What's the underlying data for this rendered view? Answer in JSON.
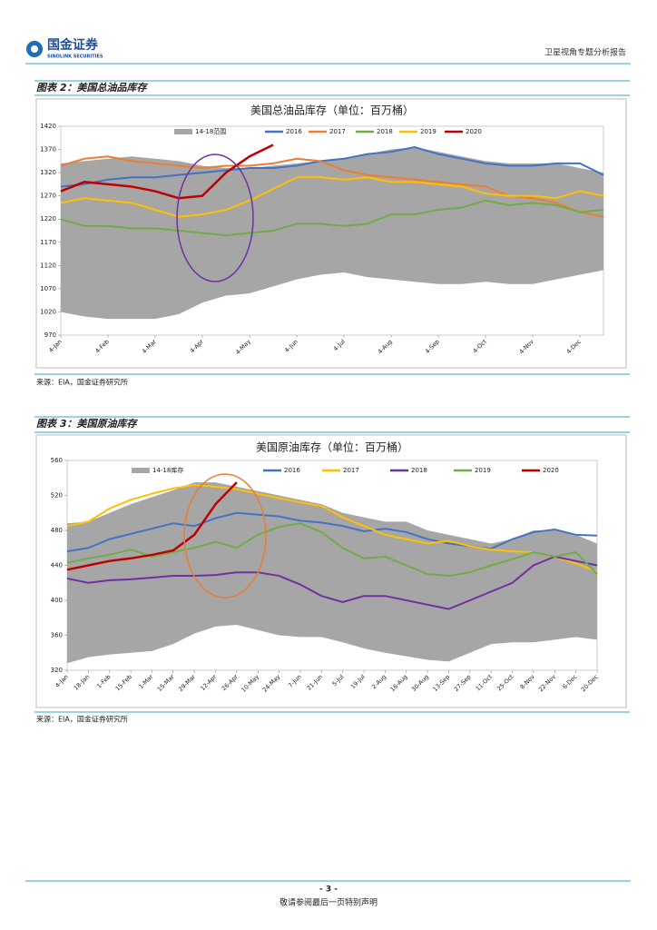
{
  "header": {
    "logo_cn": "国金证券",
    "logo_en": "SINOLINK SECURITIES",
    "report_title": "卫星视角专题分析报告"
  },
  "figures": [
    {
      "caption": "图表 2：美国总油品库存",
      "source": "来源：EIA，国金证券研究所"
    },
    {
      "caption": "图表 3：美国原油库存",
      "source": "来源：EIA，国金证券研究所"
    }
  ],
  "chart_data": [
    {
      "type": "line",
      "title": "美国总油品库存（单位：百万桶）",
      "categories": [
        "4-Jan",
        null,
        "4-Feb",
        null,
        "4-Mar",
        null,
        "4-Apr",
        null,
        "4-May",
        null,
        "4-Jun",
        null,
        "4-Jul",
        null,
        "4-Aug",
        null,
        "4-Sep",
        null,
        "4-Oct",
        null,
        "4-Nov",
        null,
        "4-Dec",
        null
      ],
      "ylim": [
        970,
        1420
      ],
      "yticks": [
        970,
        1020,
        1070,
        1120,
        1170,
        1220,
        1270,
        1320,
        1370,
        1420
      ],
      "band": {
        "name": "14-18范围",
        "color": "#a6a6a6",
        "high": [
          1340,
          1345,
          1350,
          1355,
          1350,
          1345,
          1335,
          1330,
          1330,
          1335,
          1340,
          1345,
          1350,
          1360,
          1370,
          1375,
          1365,
          1355,
          1345,
          1340,
          1340,
          1340,
          1330,
          1320
        ],
        "low": [
          1020,
          1010,
          1005,
          1005,
          1005,
          1015,
          1040,
          1055,
          1060,
          1075,
          1090,
          1100,
          1105,
          1095,
          1090,
          1085,
          1080,
          1080,
          1085,
          1080,
          1080,
          1090,
          1100,
          1110
        ]
      },
      "series": [
        {
          "name": "2016",
          "color": "#4472c4",
          "values": [
            1290,
            1295,
            1305,
            1310,
            1310,
            1315,
            1320,
            1325,
            1330,
            1330,
            1335,
            1345,
            1350,
            1360,
            1365,
            1375,
            1360,
            1350,
            1340,
            1335,
            1335,
            1340,
            1340,
            1315
          ]
        },
        {
          "name": "2017",
          "color": "#ed7d31",
          "values": [
            1335,
            1350,
            1355,
            1345,
            1340,
            1335,
            1330,
            1335,
            1335,
            1340,
            1350,
            1345,
            1325,
            1315,
            1310,
            1305,
            1300,
            1295,
            1290,
            1270,
            1265,
            1255,
            1235,
            1225
          ]
        },
        {
          "name": "2018",
          "color": "#70ad47",
          "values": [
            1220,
            1205,
            1205,
            1200,
            1200,
            1195,
            1190,
            1185,
            1190,
            1195,
            1210,
            1210,
            1205,
            1210,
            1230,
            1230,
            1240,
            1245,
            1260,
            1250,
            1255,
            1250,
            1235,
            1240
          ]
        },
        {
          "name": "2019",
          "color": "#ffc000",
          "values": [
            1255,
            1265,
            1260,
            1255,
            1240,
            1225,
            1230,
            1240,
            1260,
            1285,
            1310,
            1310,
            1305,
            1310,
            1300,
            1300,
            1295,
            1290,
            1275,
            1270,
            1270,
            1265,
            1280,
            1270
          ]
        },
        {
          "name": "2020",
          "color": "#c00000",
          "values": [
            1280,
            1300,
            1295,
            1290,
            1280,
            1265,
            1270,
            1320,
            1355,
            1380,
            null,
            null,
            null,
            null,
            null,
            null,
            null,
            null,
            null,
            null,
            null,
            null,
            null,
            null
          ]
        }
      ]
    },
    {
      "type": "line",
      "title": "美国原油库存（单位：百万桶）",
      "categories": [
        "4-Jan",
        "18-Jan",
        "1-Feb",
        "15-Feb",
        "1-Mar",
        "15-Mar",
        "29-Mar",
        "12-Apr",
        "26-Apr",
        "10-May",
        "24-May",
        "7-Jun",
        "21-Jun",
        "5-Jul",
        "19-Jul",
        "2-Aug",
        "16-Aug",
        "30-Aug",
        "13-Sep",
        "27-Sep",
        "11-Oct",
        "25-Oct",
        "8-Nov",
        "22-Nov",
        "6-Dec",
        "20-Dec"
      ],
      "ylim": [
        320,
        560
      ],
      "yticks": [
        320,
        360,
        400,
        440,
        480,
        520,
        560
      ],
      "band": {
        "name": "14-18库存",
        "color": "#a6a6a6",
        "high": [
          488,
          490,
          500,
          510,
          518,
          526,
          535,
          535,
          530,
          525,
          520,
          515,
          510,
          500,
          495,
          490,
          490,
          480,
          475,
          470,
          465,
          470,
          480,
          480,
          475,
          465
        ],
        "low": [
          328,
          335,
          338,
          340,
          342,
          350,
          362,
          370,
          372,
          366,
          360,
          358,
          358,
          352,
          345,
          340,
          336,
          332,
          330,
          340,
          350,
          352,
          352,
          355,
          358,
          355
        ]
      },
      "series": [
        {
          "name": "2016",
          "color": "#4472c4",
          "values": [
            456,
            460,
            470,
            476,
            482,
            488,
            485,
            494,
            500,
            498,
            496,
            491,
            489,
            485,
            479,
            482,
            478,
            470,
            465,
            462,
            459,
            470,
            478,
            481,
            475,
            474
          ]
        },
        {
          "name": "2017",
          "color": "#ffc000",
          "values": [
            485,
            490,
            505,
            515,
            522,
            528,
            532,
            530,
            527,
            522,
            517,
            512,
            508,
            495,
            485,
            475,
            470,
            465,
            468,
            462,
            458,
            456,
            455,
            450,
            442,
            433
          ]
        },
        {
          "name": "2018",
          "color": "#7030a0",
          "values": [
            425,
            420,
            423,
            424,
            426,
            428,
            428,
            429,
            432,
            432,
            428,
            418,
            405,
            398,
            405,
            405,
            400,
            395,
            390,
            400,
            410,
            420,
            440,
            450,
            445,
            440
          ]
        },
        {
          "name": "2019",
          "color": "#70ad47",
          "values": [
            443,
            448,
            452,
            458,
            450,
            455,
            460,
            467,
            460,
            475,
            484,
            488,
            478,
            460,
            448,
            450,
            440,
            430,
            428,
            432,
            440,
            447,
            455,
            450,
            455,
            430
          ]
        },
        {
          "name": "2020",
          "color": "#c00000",
          "values": [
            435,
            440,
            445,
            448,
            452,
            457,
            475,
            510,
            535,
            null,
            null,
            null,
            null,
            null,
            null,
            null,
            null,
            null,
            null,
            null,
            null,
            null,
            null,
            null,
            null,
            null
          ]
        }
      ]
    }
  ],
  "footer": {
    "page": "- 3 -",
    "disclaimer": "敬请参阅最后一页特别声明"
  }
}
